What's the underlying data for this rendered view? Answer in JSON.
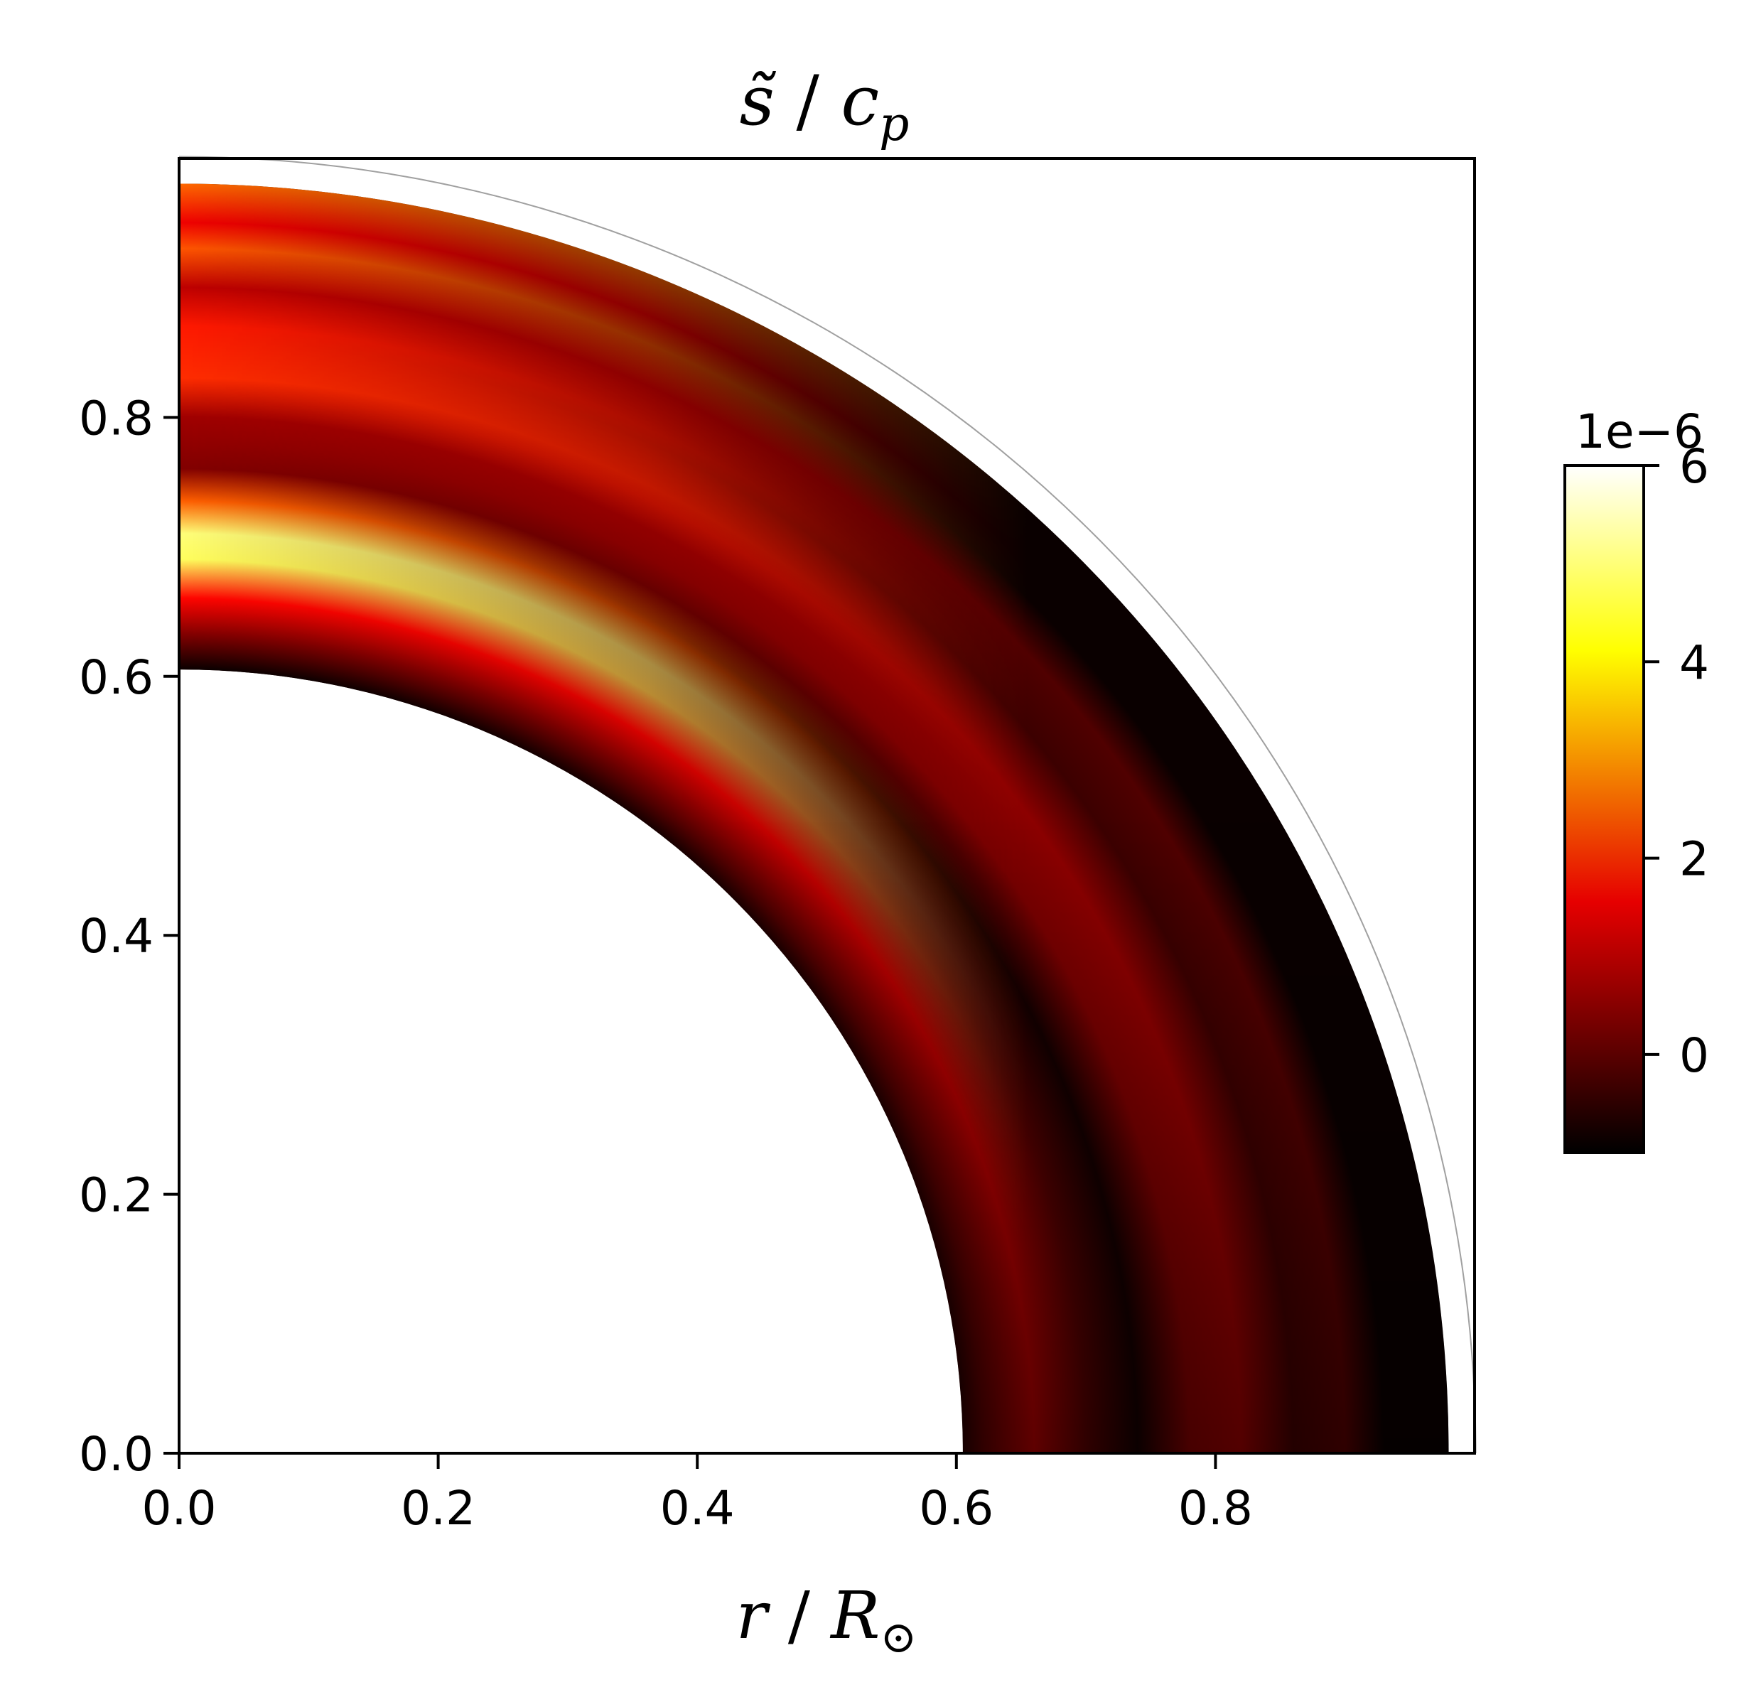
{
  "chart_data": {
    "type": "heatmap",
    "title": "s̃ / c_p",
    "xlabel": "r / R_⊙",
    "ylabel": "",
    "xlim": [
      0.0,
      1.0
    ],
    "ylim": [
      0.0,
      1.0
    ],
    "x_ticks": [
      "0.0",
      "0.2",
      "0.4",
      "0.6",
      "0.8"
    ],
    "x_tick_values": [
      0.0,
      0.2,
      0.4,
      0.6,
      0.8
    ],
    "y_ticks": [
      "0.0",
      "0.2",
      "0.4",
      "0.6",
      "0.8"
    ],
    "y_tick_values": [
      0.0,
      0.2,
      0.4,
      0.6,
      0.8
    ],
    "grid": false,
    "domain": {
      "geometry": "quarter annulus (meridional plane)",
      "r_inner": 0.605,
      "r_outer": 0.98,
      "outer_boundary_line_r": 0.98
    },
    "colorbar": {
      "colormap": "hot",
      "scale_label": "1e−6",
      "vmin": -1.0,
      "vmax": 6.0,
      "ticks": [
        "0",
        "2",
        "4",
        "6"
      ],
      "tick_values": [
        0,
        2,
        4,
        6
      ],
      "placement": "right"
    },
    "field_features": [
      {
        "r": 0.61,
        "value": -0.6,
        "note": "dark layer at base near equator"
      },
      {
        "r": 0.66,
        "value": 0.5
      },
      {
        "r": 0.7,
        "value": 5.0,
        "note": "bright band near pole, fades toward equator"
      },
      {
        "r": 0.75,
        "value": 0.2
      },
      {
        "r": 0.8,
        "value": 0.6
      },
      {
        "r": 0.86,
        "value": 1.6
      },
      {
        "r": 0.95,
        "value": 2.2,
        "note": "bright thin layer near top at high latitude"
      }
    ]
  }
}
